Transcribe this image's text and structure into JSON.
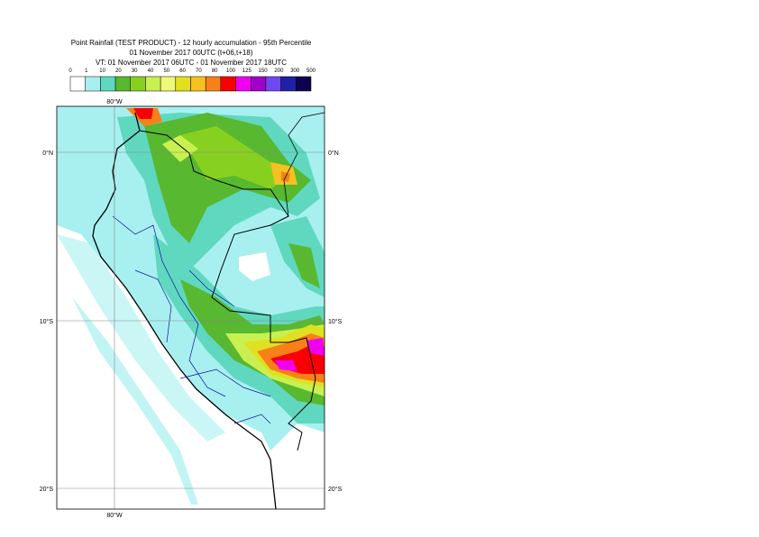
{
  "header": {
    "title": "Point Rainfall (TEST PRODUCT) - 12 hourly accumulation - 95th Percentile",
    "subtitle": "01 November 2017 00UTC (t+06,t+18)",
    "validity": "VT: 01 November 2017 06UTC - 01 November 2017 18UTC"
  },
  "legend": {
    "labels": [
      0,
      1,
      10,
      20,
      30,
      40,
      50,
      60,
      70,
      80,
      100,
      125,
      150,
      200,
      300,
      500
    ],
    "colors": [
      "#ffffff",
      "#a8f0f0",
      "#60d8c0",
      "#58b830",
      "#88d020",
      "#c8f050",
      "#f0f878",
      "#e0e020",
      "#f8c020",
      "#f88018",
      "#f80000",
      "#f000f0",
      "#a000c8",
      "#7048f0",
      "#2020a8",
      "#100050"
    ]
  },
  "map": {
    "latitude_labels": [
      "0°N",
      "10°S",
      "20°S"
    ],
    "longitude_labels": [
      "80°W"
    ]
  }
}
